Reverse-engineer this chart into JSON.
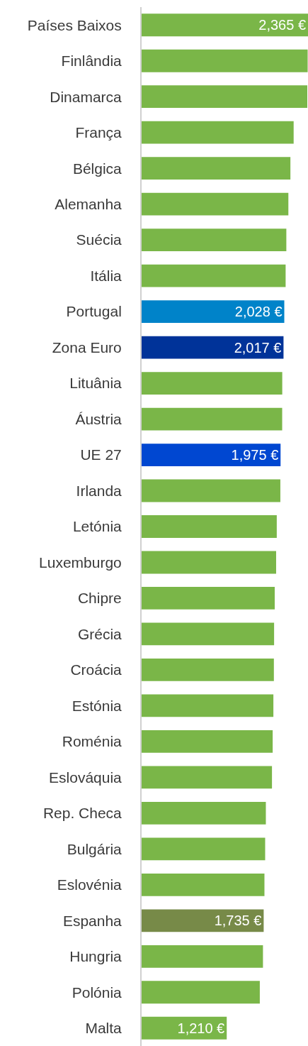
{
  "chart_data": {
    "type": "bar",
    "orientation": "horizontal",
    "tick_labels": "y",
    "legend": false,
    "categories": [
      "Países Baixos",
      "Finlândia",
      "Dinamarca",
      "França",
      "Bélgica",
      "Alemanha",
      "Suécia",
      "Itália",
      "Portugal",
      "Zona Euro",
      "Lituânia",
      "Áustria",
      "UE 27",
      "Irlanda",
      "Letónia",
      "Luxemburgo",
      "Chipre",
      "Grécia",
      "Croácia",
      "Estónia",
      "Roménia",
      "Eslováquia",
      "Rep. Checa",
      "Bulgária",
      "Eslovénia",
      "Espanha",
      "Hungria",
      "Polónia",
      "Malta"
    ],
    "values": [
      2365,
      2360,
      2355,
      2161,
      2115,
      2086,
      2057,
      2047,
      2028,
      2017,
      1999,
      1998,
      1975,
      1972,
      1921,
      1912,
      1892,
      1883,
      1880,
      1873,
      1863,
      1853,
      1766,
      1756,
      1746,
      1735,
      1725,
      1680,
      1210
    ],
    "colors": [
      "#7ab648",
      "#7ab648",
      "#7ab648",
      "#7ab648",
      "#7ab648",
      "#7ab648",
      "#7ab648",
      "#7ab648",
      "#0083c9",
      "#003399",
      "#7ab648",
      "#7ab648",
      "#0047d1",
      "#7ab648",
      "#7ab648",
      "#7ab648",
      "#7ab648",
      "#7ab648",
      "#7ab648",
      "#7ab648",
      "#7ab648",
      "#7ab648",
      "#7ab648",
      "#7ab648",
      "#7ab648",
      "#778a48",
      "#7ab648",
      "#7ab648",
      "#7ab648"
    ],
    "value_labels": [
      "2,365 €",
      null,
      null,
      null,
      null,
      null,
      null,
      null,
      "2,028 €",
      "2,017 €",
      null,
      null,
      "1,975 €",
      null,
      null,
      null,
      null,
      null,
      null,
      null,
      null,
      null,
      null,
      null,
      null,
      "1,735 €",
      null,
      null,
      "1,210 €"
    ],
    "xlim": [
      0,
      2365
    ]
  }
}
